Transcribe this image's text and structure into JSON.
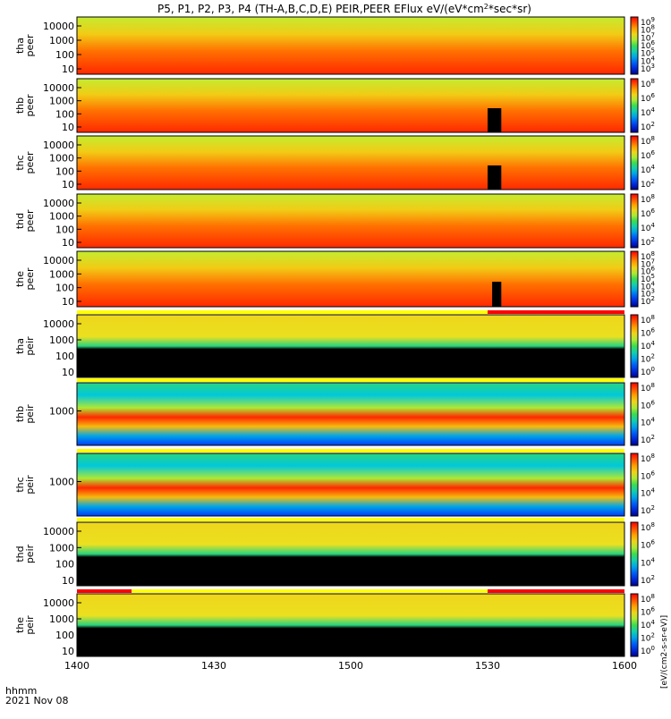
{
  "chart_data": {
    "type": "heatmap",
    "title": "P5, P1, P2, P3, P4 (TH-A,B,C,D,E) PEIR,PEER EFlux eV/(eV*cm",
    "title_sup": "2",
    "title_tail": "*sec*sr)",
    "time_axis": {
      "labels": [
        "1400",
        "1430",
        "1500",
        "1530",
        "1600"
      ],
      "values_min": [
        0,
        30,
        60,
        90,
        120
      ],
      "range_min": [
        0,
        120
      ],
      "id_line1": "hhmm",
      "id_line2": "2021 Nov 08"
    },
    "colorbar_unit_text": "[eV/(cm2-s-sr-eV)]",
    "panels": [
      {
        "id": "tha_peer",
        "sc": "tha",
        "species": "peer",
        "ylim": [
          6,
          20000
        ],
        "y_ticks": [
          "10000",
          "1000",
          "100",
          "10"
        ],
        "cbar_ticks": [
          "10^9",
          "10^8",
          "10^7",
          "10^6",
          "10^5",
          "10^4",
          "10^3"
        ],
        "cbar_range_log": [
          2,
          9
        ]
      },
      {
        "id": "thb_peer",
        "sc": "thb",
        "species": "peer",
        "ylim": [
          6,
          20000
        ],
        "y_ticks": [
          "10000",
          "1000",
          "100",
          "10"
        ],
        "cbar_ticks": [
          "10^8",
          "10^6",
          "10^4",
          "10^2"
        ],
        "cbar_range_log": [
          1,
          8
        ],
        "dropout_start_min": 90,
        "dropout_end_min": 93
      },
      {
        "id": "thc_peer",
        "sc": "thc",
        "species": "peer",
        "ylim": [
          6,
          20000
        ],
        "y_ticks": [
          "10000",
          "1000",
          "100",
          "10"
        ],
        "cbar_ticks": [
          "10^8",
          "10^6",
          "10^4",
          "10^2"
        ],
        "cbar_range_log": [
          1,
          8
        ],
        "dropout_start_min": 90,
        "dropout_end_min": 93
      },
      {
        "id": "thd_peer",
        "sc": "thd",
        "species": "peer",
        "ylim": [
          6,
          20000
        ],
        "y_ticks": [
          "10000",
          "1000",
          "100",
          "10"
        ],
        "cbar_ticks": [
          "10^8",
          "10^6",
          "10^4",
          "10^2"
        ],
        "cbar_range_log": [
          1,
          8
        ]
      },
      {
        "id": "the_peer",
        "sc": "the",
        "species": "peer",
        "ylim": [
          6,
          20000
        ],
        "y_ticks": [
          "10000",
          "1000",
          "100",
          "10"
        ],
        "cbar_ticks": [
          "10^8",
          "10^7",
          "10^6",
          "10^5",
          "10^4",
          "10^3",
          "10^2"
        ],
        "cbar_range_log": [
          1,
          8
        ],
        "dropout_start_min": 91,
        "dropout_end_min": 93
      },
      {
        "id": "tha_peir",
        "sc": "tha",
        "species": "peir",
        "ylim": [
          6,
          20000
        ],
        "y_ticks": [
          "10000",
          "1000",
          "100",
          "10"
        ],
        "cbar_ticks": [
          "10^8",
          "10^6",
          "10^4",
          "10^2",
          "10^0"
        ],
        "cbar_range_log": [
          0,
          9
        ],
        "mode_bar": [
          {
            "from_min": 0,
            "to_min": 90,
            "color": "#ffff00"
          },
          {
            "from_min": 90,
            "to_min": 120,
            "color": "#ff0000"
          }
        ]
      },
      {
        "id": "thb_peir",
        "sc": "thb",
        "species": "peir",
        "ylim": [
          6,
          20000
        ],
        "y_ticks": [
          "1000"
        ],
        "cbar_ticks": [
          "10^8",
          "10^6",
          "10^4",
          "10^2"
        ],
        "cbar_range_log": [
          1,
          9
        ],
        "mode_bar": [
          {
            "from_min": 0,
            "to_min": 120,
            "color": "#ffff00"
          }
        ]
      },
      {
        "id": "thc_peir",
        "sc": "thc",
        "species": "peir",
        "ylim": [
          6,
          20000
        ],
        "y_ticks": [
          "1000"
        ],
        "cbar_ticks": [
          "10^8",
          "10^6",
          "10^4",
          "10^2"
        ],
        "cbar_range_log": [
          1,
          9
        ],
        "mode_bar": [
          {
            "from_min": 0,
            "to_min": 120,
            "color": "#ffff00"
          }
        ]
      },
      {
        "id": "thd_peir",
        "sc": "thd",
        "species": "peir",
        "ylim": [
          6,
          20000
        ],
        "y_ticks": [
          "10000",
          "1000",
          "100",
          "10"
        ],
        "cbar_ticks": [
          "10^8",
          "10^6",
          "10^4",
          "10^2"
        ],
        "cbar_range_log": [
          1,
          9
        ],
        "mode_bar": [
          {
            "from_min": 0,
            "to_min": 120,
            "color": "#ffff00"
          }
        ]
      },
      {
        "id": "the_peir",
        "sc": "the",
        "species": "peir",
        "ylim": [
          6,
          20000
        ],
        "y_ticks": [
          "10000",
          "1000",
          "100",
          "10"
        ],
        "cbar_ticks": [
          "10^8",
          "10^6",
          "10^4",
          "10^2",
          "10^0"
        ],
        "cbar_range_log": [
          0,
          9
        ],
        "mode_bar": [
          {
            "from_min": 0,
            "to_min": 12,
            "color": "#ff0000"
          },
          {
            "from_min": 12,
            "to_min": 90,
            "color": "#ffff00"
          },
          {
            "from_min": 90,
            "to_min": 120,
            "color": "#ff0000"
          }
        ]
      }
    ],
    "colors": {
      "low": "#000080",
      "mid": "#00c0c0",
      "high": "#ff0000",
      "fill": "#000000"
    }
  }
}
